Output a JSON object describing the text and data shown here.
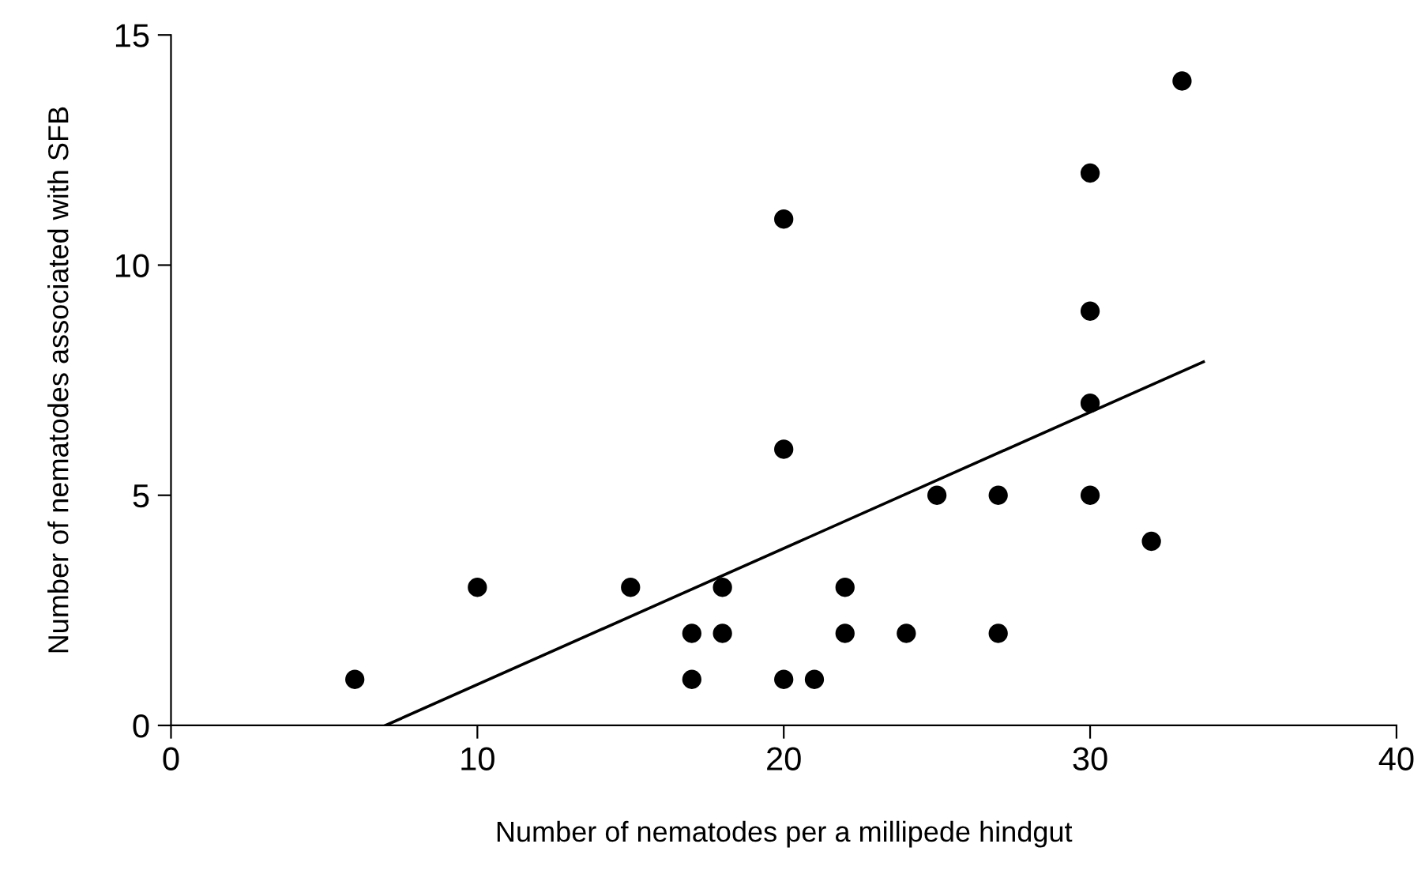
{
  "chart_data": {
    "type": "scatter",
    "xlabel": "Number of nematodes per a millipede hindgut",
    "ylabel": "Number of nematodes associated with SFB",
    "xlim": [
      0,
      40
    ],
    "xticks": [
      0,
      10,
      20,
      30,
      40
    ],
    "ylim": [
      0,
      15
    ],
    "yticks": [
      0,
      5,
      10,
      15
    ],
    "grid": false,
    "marker": "circle",
    "series": [
      {
        "color": "#000000",
        "x": [
          6,
          10,
          15,
          17,
          17,
          18,
          18,
          20,
          20,
          20,
          21,
          22,
          22,
          24,
          25,
          27,
          27,
          30,
          30,
          30,
          30,
          32,
          33
        ],
        "values": [
          1,
          3,
          3,
          2,
          1,
          3,
          2,
          11,
          6,
          1,
          1,
          3,
          2,
          2,
          5,
          5,
          2,
          12,
          9,
          7,
          5,
          4,
          14
        ]
      },
      {
        "type": "line",
        "color": "#000000",
        "x": [
          7,
          33.7
        ],
        "values": [
          0,
          7.9
        ],
        "marker": "none",
        "line_style": "solid"
      }
    ]
  }
}
